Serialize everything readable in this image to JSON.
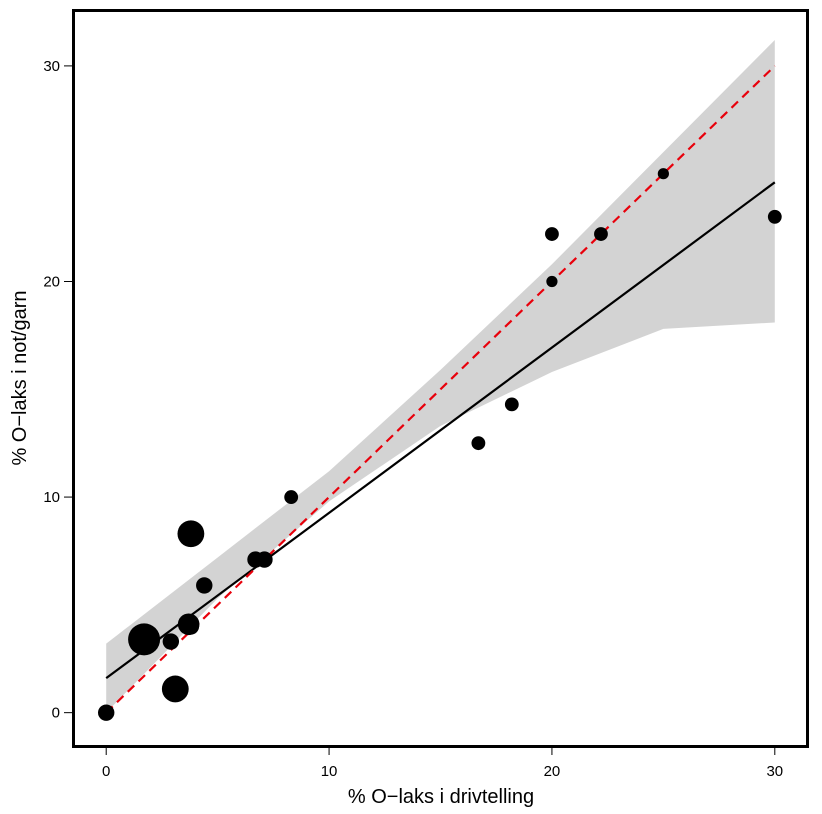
{
  "chart_data": {
    "type": "scatter",
    "xlabel": "% O−laks i drivtelling",
    "ylabel": "% O−laks i not/garn",
    "xlim": [
      -1.4,
      31.4
    ],
    "ylim": [
      -1.5,
      32.5
    ],
    "xticks": [
      0,
      10,
      20,
      30
    ],
    "yticks": [
      0,
      10,
      20,
      30
    ],
    "grid": false,
    "points": [
      {
        "x": 0.0,
        "y": 0.0,
        "size": 2
      },
      {
        "x": 1.7,
        "y": 3.4,
        "size": 5
      },
      {
        "x": 2.9,
        "y": 3.3,
        "size": 2
      },
      {
        "x": 3.1,
        "y": 1.1,
        "size": 4
      },
      {
        "x": 3.7,
        "y": 4.1,
        "size": 3
      },
      {
        "x": 3.8,
        "y": 4.0,
        "size": 2
      },
      {
        "x": 3.8,
        "y": 8.3,
        "size": 4
      },
      {
        "x": 4.4,
        "y": 5.9,
        "size": 2
      },
      {
        "x": 6.7,
        "y": 7.1,
        "size": 2
      },
      {
        "x": 7.1,
        "y": 7.1,
        "size": 2
      },
      {
        "x": 8.3,
        "y": 10.0,
        "size": 1.5
      },
      {
        "x": 16.7,
        "y": 12.5,
        "size": 1.5
      },
      {
        "x": 18.2,
        "y": 14.3,
        "size": 1.5
      },
      {
        "x": 20.0,
        "y": 22.2,
        "size": 1.5
      },
      {
        "x": 20.0,
        "y": 20.0,
        "size": 1
      },
      {
        "x": 22.2,
        "y": 22.2,
        "size": 1.5
      },
      {
        "x": 25.0,
        "y": 25.0,
        "size": 1
      },
      {
        "x": 30.0,
        "y": 23.0,
        "size": 1.5
      }
    ],
    "regression": {
      "x": [
        0,
        30
      ],
      "y": [
        1.6,
        24.6
      ]
    },
    "confidence_band": {
      "x": [
        0,
        5,
        10,
        15,
        20,
        25,
        30
      ],
      "lower": [
        0.0,
        5.3,
        9.8,
        13.3,
        15.8,
        17.8,
        18.1
      ],
      "upper": [
        3.2,
        7.2,
        11.2,
        15.9,
        20.8,
        26.0,
        31.2
      ]
    },
    "identity_line": {
      "x": [
        0,
        30
      ],
      "y": [
        0,
        30
      ]
    },
    "colors": {
      "points": "#000000",
      "regression": "#000000",
      "band": "#d3d3d3",
      "identity": "#e8000b"
    }
  }
}
